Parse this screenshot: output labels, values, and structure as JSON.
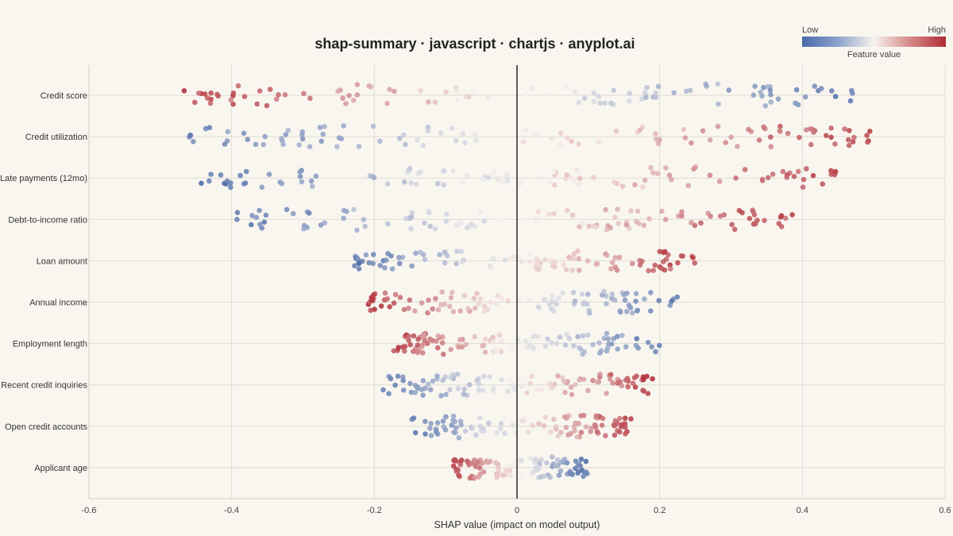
{
  "chart_data": {
    "type": "scatter",
    "title": "shap-summary · javascript · chartjs · anyplot.ai",
    "xlabel": "SHAP value (impact on model output)",
    "ylabel": "",
    "xlim": [
      -0.6,
      0.6
    ],
    "x_ticks": [
      "-0.6",
      "-0.4",
      "-0.2",
      "0",
      "0.2",
      "0.4",
      "0.6"
    ],
    "grid": true,
    "legend": {
      "placement": "top-right",
      "low_label": "Low",
      "high_label": "High",
      "caption": "Feature value",
      "low_color": "#4a6aa8",
      "mid_color": "#f6f2ee",
      "high_color": "#b02c35"
    },
    "features": [
      {
        "name": "Credit score",
        "min_shap": -0.47,
        "max_shap": 0.48,
        "high_side": "left"
      },
      {
        "name": "Credit utilization",
        "min_shap": -0.47,
        "max_shap": 0.51,
        "high_side": "right"
      },
      {
        "name": "Late payments (12mo)",
        "min_shap": -0.45,
        "max_shap": 0.46,
        "high_side": "right"
      },
      {
        "name": "Debt-to-income ratio",
        "min_shap": -0.41,
        "max_shap": 0.39,
        "high_side": "right"
      },
      {
        "name": "Loan amount",
        "min_shap": -0.23,
        "max_shap": 0.25,
        "high_side": "right"
      },
      {
        "name": "Annual income",
        "min_shap": -0.21,
        "max_shap": 0.23,
        "high_side": "left"
      },
      {
        "name": "Employment length",
        "min_shap": -0.18,
        "max_shap": 0.2,
        "high_side": "left"
      },
      {
        "name": "Recent credit inquiries",
        "min_shap": -0.19,
        "max_shap": 0.19,
        "high_side": "right"
      },
      {
        "name": "Open credit accounts",
        "min_shap": -0.15,
        "max_shap": 0.16,
        "high_side": "right"
      },
      {
        "name": "Applicant age",
        "min_shap": -0.09,
        "max_shap": 0.1,
        "high_side": "left"
      }
    ]
  }
}
